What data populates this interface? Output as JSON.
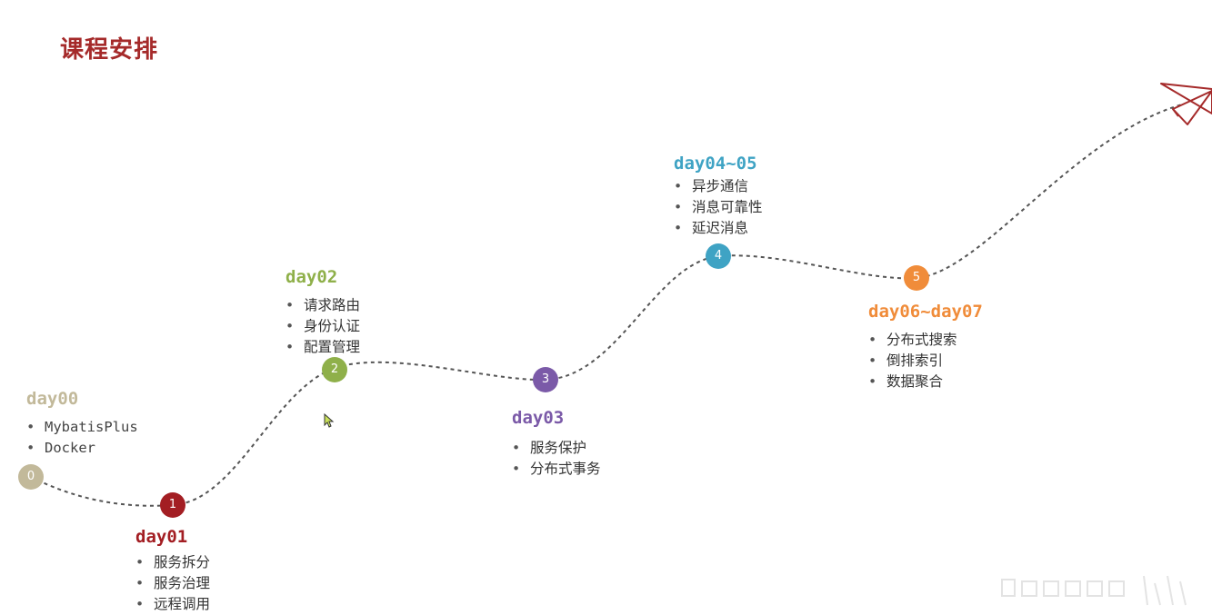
{
  "title": "课程安排",
  "colors": {
    "title": "#a52a2a",
    "day00": "#c2b99a",
    "day01": "#a31e23",
    "day02": "#8fb04a",
    "day03": "#7b5aa8",
    "day04": "#3fa3c4",
    "day05": "#f08c3a",
    "path": "#555555"
  },
  "icons": {
    "plane": "paper-plane-icon",
    "cursor": "mouse-cursor-icon"
  },
  "stages": [
    {
      "num": "0",
      "day": "day00",
      "items": [
        "MybatisPlus",
        "Docker"
      ]
    },
    {
      "num": "1",
      "day": "day01",
      "items": [
        "服务拆分",
        "服务治理",
        "远程调用"
      ]
    },
    {
      "num": "2",
      "day": "day02",
      "items": [
        "请求路由",
        "身份认证",
        "配置管理"
      ]
    },
    {
      "num": "3",
      "day": "day03",
      "items": [
        "服务保护",
        "分布式事务"
      ]
    },
    {
      "num": "4",
      "day": "day04~05",
      "items": [
        "异步通信",
        "消息可靠性",
        "延迟消息"
      ]
    },
    {
      "num": "5",
      "day": "day06~day07",
      "items": [
        "分布式搜索",
        "倒排索引",
        "数据聚合"
      ]
    }
  ]
}
